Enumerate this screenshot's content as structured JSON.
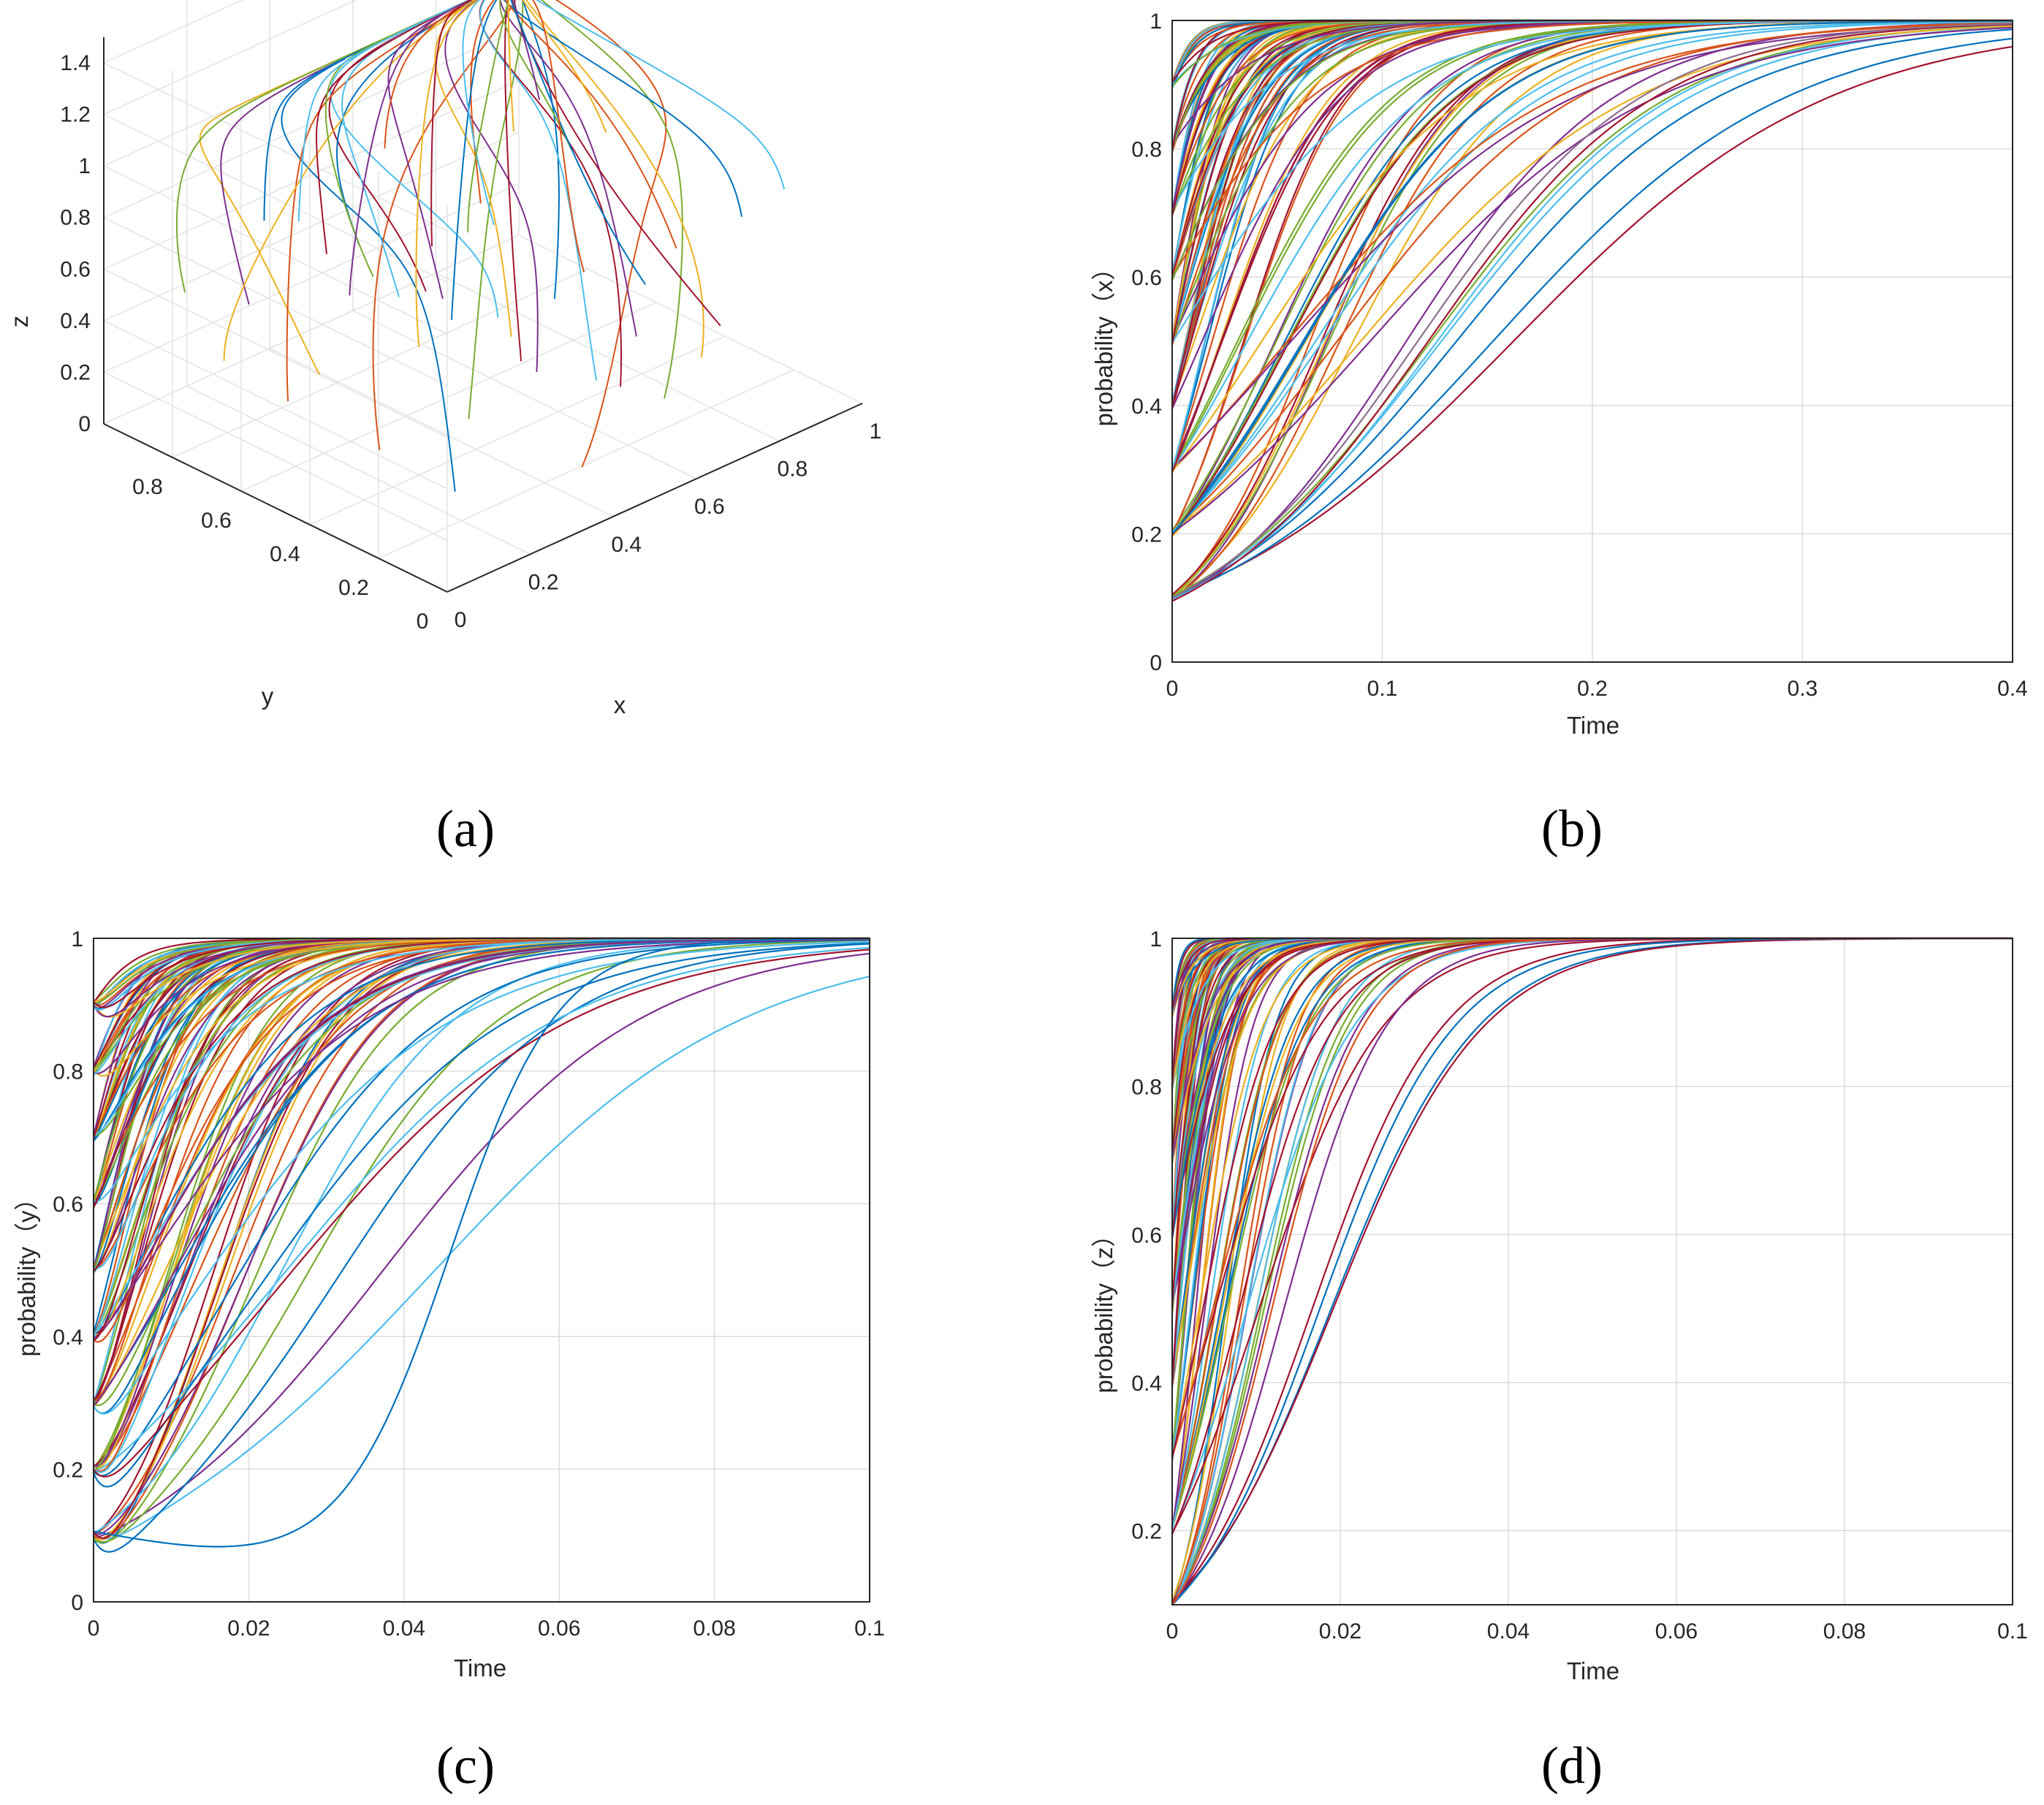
{
  "chart_data": [
    {
      "id": "a",
      "type": "line",
      "subtype": "3d-trajectories",
      "panel_label": "(a)",
      "xlabel": "x",
      "ylabel": "y",
      "zlabel": "z",
      "xlim": [
        0,
        1
      ],
      "ylim": [
        0,
        1
      ],
      "zlim": [
        0,
        1.4
      ],
      "xticks": [
        "0",
        "0.2",
        "0.4",
        "0.6",
        "0.8",
        "1"
      ],
      "yticks": [
        "0",
        "0.2",
        "0.4",
        "0.6",
        "0.8"
      ],
      "zticks": [
        "0",
        "0.2",
        "0.4",
        "0.6",
        "0.8",
        "1",
        "1.2",
        "1.4"
      ],
      "initial_grid": [
        0.1,
        0.2,
        0.3,
        0.4,
        0.5,
        0.6,
        0.7,
        0.8,
        0.9
      ],
      "converges_to": {
        "x": 1,
        "y": 1,
        "z": 1
      }
    },
    {
      "id": "b",
      "type": "line",
      "panel_label": "(b)",
      "xlabel": "Time",
      "ylabel": "probability（x）",
      "xlim": [
        0,
        0.4
      ],
      "ylim": [
        0,
        1
      ],
      "xticks": [
        "0",
        "0.1",
        "0.2",
        "0.3",
        "0.4"
      ],
      "yticks": [
        "0",
        "0.2",
        "0.4",
        "0.6",
        "0.8",
        "1"
      ],
      "initial_values": [
        0.1,
        0.2,
        0.3,
        0.4,
        0.5,
        0.6,
        0.7,
        0.8,
        0.9
      ],
      "steady_state": 1,
      "slowest_convergence_time": 0.35
    },
    {
      "id": "c",
      "type": "line",
      "panel_label": "(c)",
      "xlabel": "Time",
      "ylabel": "probability（y）",
      "xlim": [
        0,
        0.1
      ],
      "ylim": [
        0,
        1
      ],
      "xticks": [
        "0",
        "0.02",
        "0.04",
        "0.06",
        "0.08",
        "0.1"
      ],
      "yticks": [
        "0",
        "0.2",
        "0.4",
        "0.6",
        "0.8",
        "1"
      ],
      "initial_values": [
        0.1,
        0.2,
        0.3,
        0.4,
        0.5,
        0.6,
        0.7,
        0.8,
        0.9
      ],
      "steady_state": 1,
      "slowest_curve_minimum": {
        "time": 0.017,
        "value": 0.055
      },
      "slowest_convergence_time": 0.08
    },
    {
      "id": "d",
      "type": "line",
      "panel_label": "(d)",
      "xlabel": "Time",
      "ylabel": "probability（z）",
      "xlim": [
        0,
        0.1
      ],
      "ylim": [
        0.1,
        1
      ],
      "xticks": [
        "0",
        "0.02",
        "0.04",
        "0.06",
        "0.08",
        "0.1"
      ],
      "yticks": [
        "0.2",
        "0.4",
        "0.6",
        "0.8",
        "1"
      ],
      "initial_values": [
        0.1,
        0.2,
        0.3,
        0.4,
        0.5,
        0.6,
        0.7,
        0.8,
        0.9
      ],
      "steady_state": 1,
      "slowest_convergence_time": 0.045
    }
  ],
  "colors": [
    "#0072BD",
    "#D95319",
    "#EDB120",
    "#7E2F8E",
    "#77AC30",
    "#4DBEEE",
    "#A2142F"
  ]
}
